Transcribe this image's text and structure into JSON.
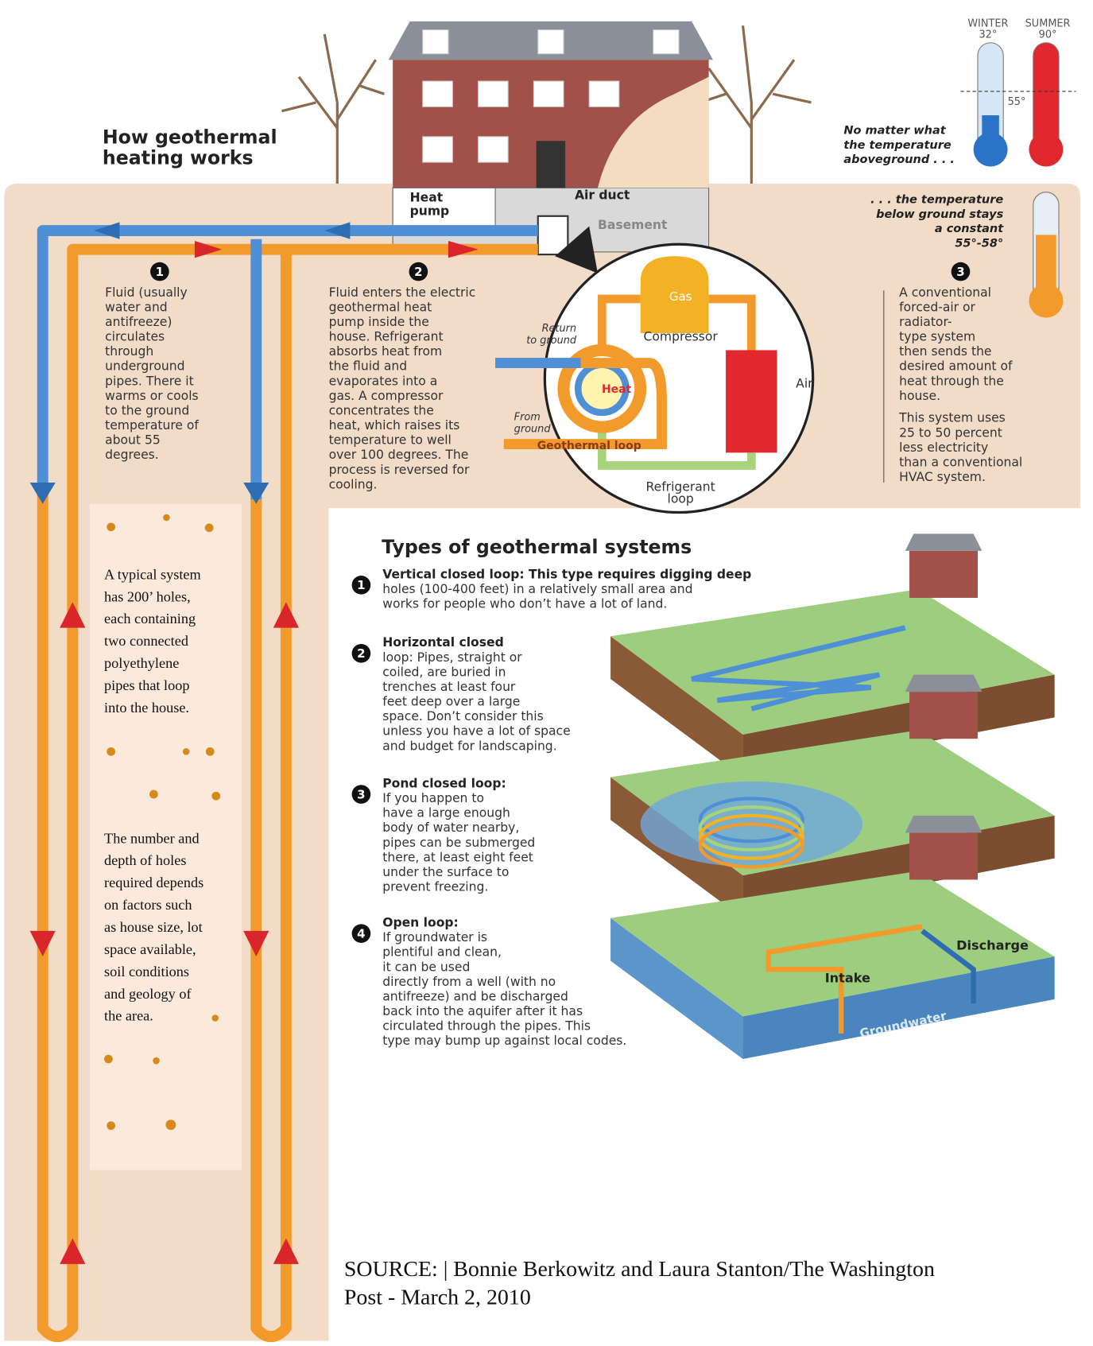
{
  "header": {
    "title": [
      "How geothermal",
      "heating works"
    ]
  },
  "thermometers": {
    "winter_label": "WINTER",
    "winter_temp": "32°",
    "summer_label": "SUMMER",
    "summer_temp": "90°",
    "middle": "55°",
    "above_note": [
      "No matter what",
      "the temperature",
      "aboveground . . ."
    ],
    "below_note": [
      ". . . the temperature",
      "below ground stays",
      "a constant",
      "55°-58°"
    ]
  },
  "house": {
    "heat_pump": [
      "Heat",
      "pump"
    ],
    "air_duct": "Air duct",
    "basement": "Basement"
  },
  "steps": [
    {
      "number": "1",
      "lines": [
        "Fluid (usually",
        "water and",
        "antifreeze)",
        "circulates",
        "through",
        "underground",
        "pipes. There it",
        "warms or cools",
        "to the ground",
        "temperature of",
        "about 55",
        "degrees."
      ]
    },
    {
      "number": "2",
      "lines": [
        "Fluid enters the electric",
        "geothermal heat",
        "pump inside the",
        "house. Refrigerant",
        "absorbs heat from",
        "the fluid and",
        "evaporates into a",
        "gas. A compressor",
        "concentrates the",
        "heat, which raises its",
        "temperature to well",
        "over 100 degrees. The",
        "process is reversed for",
        "cooling."
      ]
    },
    {
      "number": "3",
      "lines": [
        "A conventional",
        "forced-air or",
        "radiator-",
        "type system",
        "then sends the",
        "desired amount of",
        "heat through the",
        "house."
      ],
      "extra": [
        "This system uses",
        "25 to 50 percent",
        "less electricity",
        "than a conventional",
        "HVAC system."
      ]
    }
  ],
  "pump_diagram": {
    "gas": "Gas",
    "compressor": "Compressor",
    "return": [
      "Return",
      "to ground"
    ],
    "heat": "Heat",
    "from": [
      "From",
      "ground"
    ],
    "loop": "Geothermal loop",
    "air": "Air",
    "refrigerant": [
      "Refrigerant",
      "loop"
    ]
  },
  "side_box": {
    "paragraph_1": [
      "A typical system",
      "has 200’ holes,",
      "each containing",
      "two connected",
      "polyethylene",
      "pipes that loop",
      "into the house."
    ],
    "paragraph_2": [
      "The number and",
      "depth of holes",
      "required depends",
      "on factors such",
      "as house size, lot",
      "space available,",
      "soil conditions",
      "and geology of",
      "the area."
    ]
  },
  "types": {
    "title": "Types of geothermal systems",
    "items": [
      {
        "number": "1",
        "lines": [
          "Vertical closed loop: This type requires digging deep",
          "holes (100-400 feet) in a relatively small area and",
          "works for people who don’t have a lot of land."
        ]
      },
      {
        "number": "2",
        "lines": [
          "Horizontal closed",
          "loop: Pipes, straight or",
          "coiled, are buried in",
          "trenches at least four",
          "feet deep over a large",
          "space. Don’t consider this",
          "unless you have a lot of space",
          "and budget for landscaping."
        ]
      },
      {
        "number": "3",
        "lines": [
          "Pond closed loop:",
          "If you happen to",
          "have a large enough",
          "body of water nearby,",
          "pipes can be submerged",
          "there, at least eight feet",
          "under the surface to",
          "prevent freezing."
        ]
      },
      {
        "number": "4",
        "lines": [
          "Open loop:",
          "If groundwater is",
          "plentiful and clean,",
          "it can be used",
          "directly from a well (with no",
          "antifreeze) and be discharged",
          "back into the aquifer after it has",
          "circulated through the pipes. This",
          "type may bump up against local codes."
        ]
      }
    ],
    "discharge": "Discharge",
    "intake": "Intake",
    "groundwater": "Groundwater"
  },
  "source": [
    "SOURCE: | Bonnie Berkowitz and Laura Stanton/The Washington",
    "Post - March 2, 2010"
  ]
}
